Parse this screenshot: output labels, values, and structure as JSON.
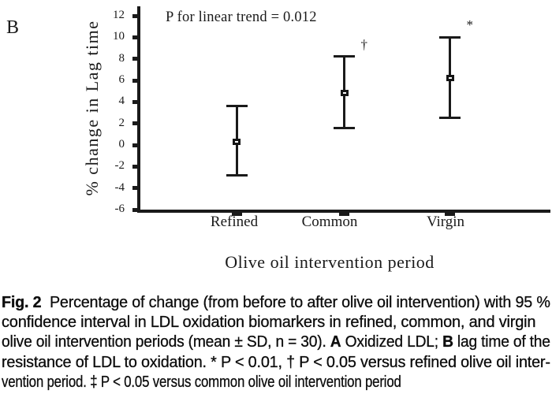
{
  "figure": {
    "panel_label": "B"
  },
  "chart_data": {
    "type": "scatter",
    "subtype": "point-with-error-bars",
    "title": "",
    "annotation": "P for linear trend = 0.012",
    "xlabel": "Olive oil intervention period",
    "ylabel": "% change in Lag time",
    "categories": [
      "Refined",
      "Common",
      "Virgin"
    ],
    "series": [
      {
        "name": "% change in Lag time (mean with 95% CI)",
        "points": [
          {
            "category": "Refined",
            "mean": 0.3,
            "ci_low": -2.8,
            "ci_high": 3.6,
            "sig": ""
          },
          {
            "category": "Common",
            "mean": 4.8,
            "ci_low": 1.6,
            "ci_high": 8.2,
            "sig": "†"
          },
          {
            "category": "Virgin",
            "mean": 6.2,
            "ci_low": 2.5,
            "ci_high": 10.0,
            "sig": "*"
          }
        ]
      }
    ],
    "ylim": [
      -6,
      12
    ],
    "ytick_step": 2,
    "grid": false,
    "legend": "none",
    "marker_style": "open-square",
    "color": "#1a1a1a"
  },
  "caption": {
    "lines": [
      [
        {
          "t": "Fig. 2",
          "b": true
        },
        {
          "t": "  Percentage of change (from before to after olive oil intervention) with 95 %",
          "b": false
        }
      ],
      [
        {
          "t": "confidence interval in LDL oxidation biomarkers in refined, common, and virgin",
          "b": false
        }
      ],
      [
        {
          "t": "olive oil intervention periods (mean ± SD, n = 30). ",
          "b": false
        },
        {
          "t": "A",
          "b": true
        },
        {
          "t": " Oxidized LDL; ",
          "b": false
        },
        {
          "t": "B",
          "b": true
        },
        {
          "t": " lag time of the",
          "b": false
        }
      ],
      [
        {
          "t": "resistance of LDL to oxidation. * P < 0.01, † P < 0.05 versus refined olive oil inter-",
          "b": false
        }
      ],
      [
        {
          "t": "vention period. ‡ P < 0.05 versus common olive oil intervention period",
          "b": false
        }
      ]
    ]
  }
}
